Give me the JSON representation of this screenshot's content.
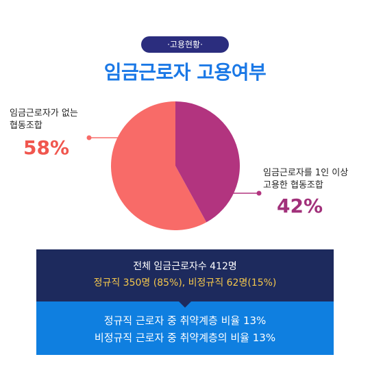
{
  "badge": "·고용현황·",
  "title": "임금근로자 고용여부",
  "chart_data": {
    "type": "pie",
    "slices": [
      {
        "label_line1": "임금근로자가 없는",
        "label_line2": "협동조합",
        "display": "58%",
        "value": 58,
        "color": "#f86b68"
      },
      {
        "label_line1": "임금근로자를 1인 이상",
        "label_line2": "고용한 협동조합",
        "display": "42%",
        "value": 42,
        "color": "#b2347f"
      }
    ]
  },
  "summary": {
    "total_line": "전체 임금근로자수 412명",
    "split_line": "정규직 350명 (85%), 비정규직 62명(15%)"
  },
  "vulnerable": {
    "line1": "정규직 근로자 중 취약계층 비율 13%",
    "line2": "비정규직 근로자 중 취약계층의 비율 13%"
  },
  "colors": {
    "badge_bg": "#2b2d7e",
    "title": "#1a78e6",
    "left_accent": "#f0564e",
    "right_accent": "#a1307a",
    "box_dark": "#1d2a5d",
    "box_blue": "#0f7fe0",
    "highlight_text": "#f5c84c"
  }
}
